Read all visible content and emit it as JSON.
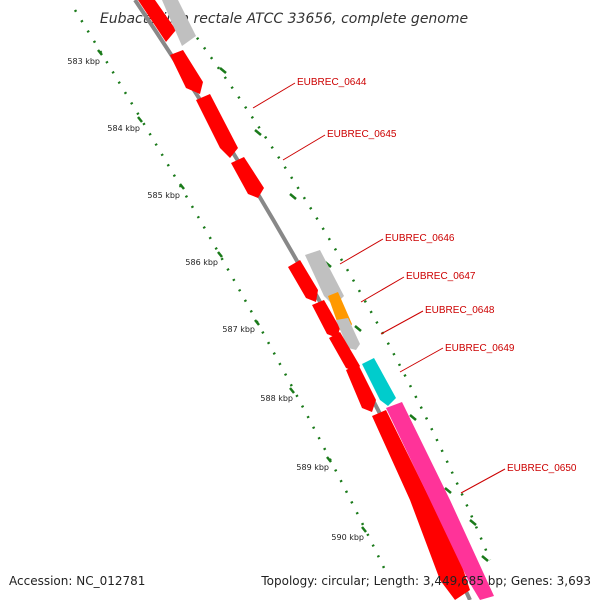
{
  "title": "Eubacterium rectale ATCC 33656, complete genome",
  "ruler_labels": [
    "583 kbp",
    "584 kbp",
    "585 kbp",
    "586 kbp",
    "587 kbp",
    "588 kbp",
    "589 kbp",
    "590 kbp"
  ],
  "gene_labels": [
    "EUBREC_0644",
    "EUBREC_0645",
    "EUBREC_0646",
    "EUBREC_0647",
    "EUBREC_0648",
    "EUBREC_0649",
    "EUBREC_0650"
  ],
  "footer": {
    "accession": "Accession: NC_012781",
    "summary": "Topology: circular; Length: 3,449,685 bp; Genes: 3,693"
  },
  "colors": {
    "forward_strand": "#ff0000",
    "reverse_strand": "#c0c0c0",
    "orange_gene": "#ff9900",
    "cyan_gene": "#00cccc",
    "magenta_gene": "#ff3399",
    "backbone": "#888888",
    "ruler_ticks": "#1a7a1a",
    "label_text": "#cc0000"
  }
}
